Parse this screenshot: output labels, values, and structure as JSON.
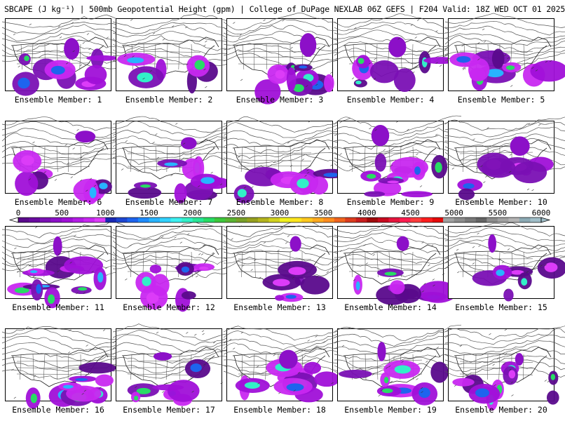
{
  "title": "SBCAPE (J kg⁻¹) | 500mb Geopotential Height (gpm) | College of DuPage NEXLAB 06Z GEFS | F204 Valid: 18Z WED OCT 01 2025",
  "panels": [
    {
      "label": "Ensemble Member: 1"
    },
    {
      "label": "Ensemble Member: 2"
    },
    {
      "label": "Ensemble Member: 3"
    },
    {
      "label": "Ensemble Member: 4"
    },
    {
      "label": "Ensemble Member: 5"
    },
    {
      "label": "Ensemble Member: 6"
    },
    {
      "label": "Ensemble Member: 7"
    },
    {
      "label": "Ensemble Member: 8"
    },
    {
      "label": "Ensemble Member: 9"
    },
    {
      "label": "Ensemble Member: 10"
    },
    {
      "label": "Ensemble Member: 11"
    },
    {
      "label": "Ensemble Member: 12"
    },
    {
      "label": "Ensemble Member: 13"
    },
    {
      "label": "Ensemble Member: 14"
    },
    {
      "label": "Ensemble Member: 15"
    },
    {
      "label": "Ensemble Member: 16"
    },
    {
      "label": "Ensemble Member: 17"
    },
    {
      "label": "Ensemble Member: 18"
    },
    {
      "label": "Ensemble Member: 19"
    },
    {
      "label": "Ensemble Member: 20"
    }
  ],
  "colorbar": {
    "ticks": [
      "0",
      "500",
      "1000",
      "1500",
      "2000",
      "2500",
      "3000",
      "3500",
      "4000",
      "4500",
      "5000",
      "5500",
      "6000"
    ],
    "min": 0,
    "max": 6000,
    "colors": [
      "#5a0a8c",
      "#6a0aa0",
      "#7a10b4",
      "#8c10c8",
      "#a010d8",
      "#b41ce6",
      "#c828f0",
      "#dc3cf8",
      "#1a28b4",
      "#1e46d2",
      "#1e64ee",
      "#1e8cff",
      "#28b4ff",
      "#32d2ff",
      "#3cf0f0",
      "#32f0c8",
      "#28e696",
      "#28dc64",
      "#3cc83c",
      "#5ab432",
      "#78a028",
      "#96a01e",
      "#b4b41e",
      "#d2d21e",
      "#f0f01e",
      "#ffe61e",
      "#ffc81e",
      "#ffaa1e",
      "#ff8c1e",
      "#f0641e",
      "#dc3c1e",
      "#c81e1e",
      "#a00a0a",
      "#c80a1e",
      "#e6143c",
      "#ff1e50",
      "#ff3c3c",
      "#ff1e1e",
      "#e60a0a",
      "#a0a0a0",
      "#8c8c8c",
      "#787878",
      "#646464",
      "#8c8c8c",
      "#a0a0a0",
      "#b4b4b4",
      "#8caab4",
      "#a0bec8"
    ]
  }
}
